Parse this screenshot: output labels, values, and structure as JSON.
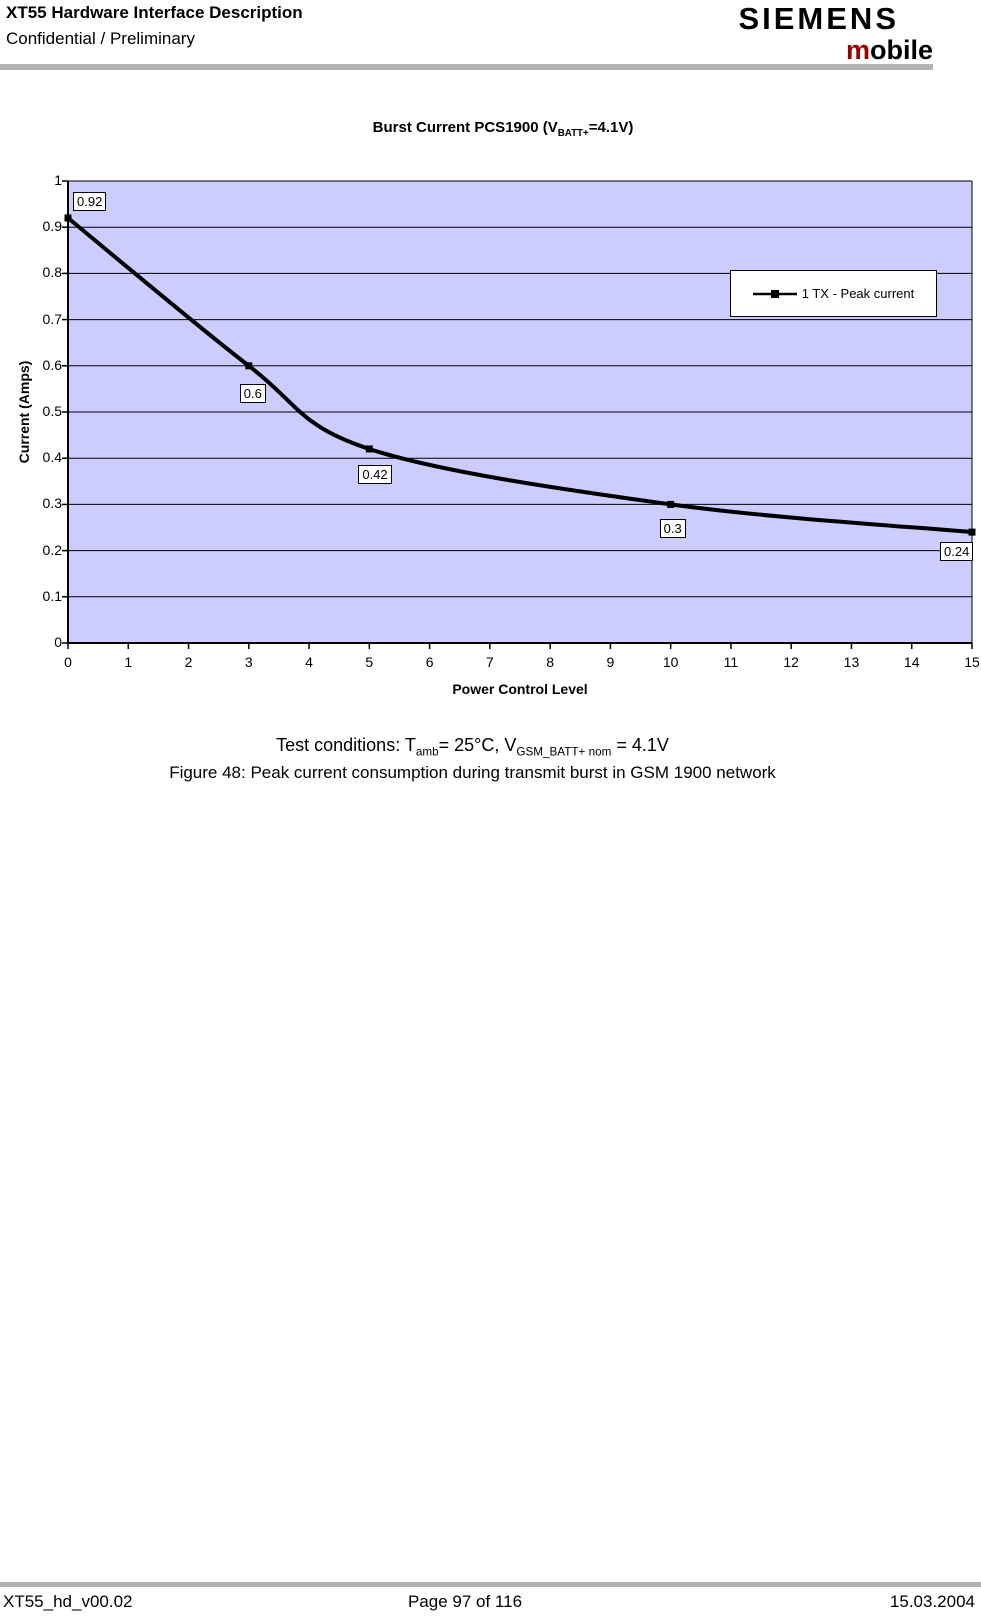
{
  "header": {
    "title": "XT55 Hardware Interface Description",
    "subtitle": "Confidential / Preliminary",
    "logo": {
      "brand": "SIEMENS",
      "mobile_m": "m",
      "mobile_rest": "obile",
      "mobile_m_color": "#990000"
    }
  },
  "chart_data": {
    "type": "line",
    "title": "Burst Current PCS1900 (VBATT+=4.1V)",
    "title_parts": {
      "prefix": "Burst Current PCS1900 (V",
      "subscript": "BATT+",
      "suffix": "=4.1V)"
    },
    "xlabel": "Power Control Level",
    "ylabel": "Current (Amps)",
    "xlim": [
      0,
      15
    ],
    "ylim": [
      0,
      1
    ],
    "xticks": [
      "0",
      "1",
      "2",
      "3",
      "4",
      "5",
      "6",
      "7",
      "8",
      "9",
      "10",
      "11",
      "12",
      "13",
      "14",
      "15"
    ],
    "yticks": [
      "0",
      "0.1",
      "0.2",
      "0.3",
      "0.4",
      "0.5",
      "0.6",
      "0.7",
      "0.8",
      "0.9",
      "1"
    ],
    "grid": "horizontal-only",
    "plot_bg_color": "#ccccff",
    "gridline_color": "#000000",
    "line_color": "#000000",
    "legend": {
      "position": "upper-right-inside",
      "entries": [
        {
          "label": "1 TX - Peak current",
          "marker": "square",
          "color": "#000000"
        }
      ]
    },
    "series": [
      {
        "name": "1 TX - Peak current",
        "smooth": true,
        "x": [
          0,
          3,
          5,
          10,
          15
        ],
        "y": [
          0.92,
          0.6,
          0.42,
          0.3,
          0.24
        ],
        "point_labels": [
          "0.92",
          "0.6",
          "0.42",
          "0.3",
          "0.24"
        ],
        "label_offsets": [
          [
            5,
            -26
          ],
          [
            -9,
            18
          ],
          [
            -11,
            16
          ],
          [
            -11,
            15
          ],
          [
            -32,
            10
          ]
        ]
      }
    ]
  },
  "notes": {
    "test_conditions": {
      "prefix": "Test conditions: T",
      "sub1": "amb",
      "mid": "= 25°C, V",
      "sub2": "GSM_BATT+ nom",
      "suffix": " = 4.1V"
    },
    "figure_caption": "Figure 48: Peak current consumption during transmit burst in GSM 1900 network"
  },
  "footer": {
    "left": "XT55_hd_v00.02",
    "center": "Page 97 of 116",
    "right": "15.03.2004"
  }
}
